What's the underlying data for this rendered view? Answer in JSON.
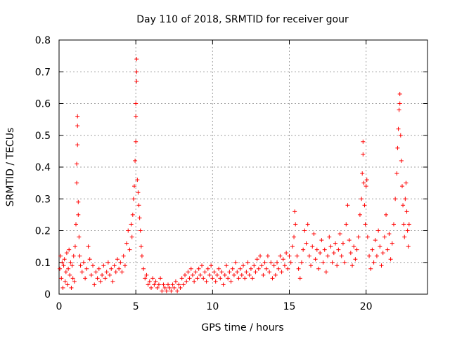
{
  "chart_data": {
    "type": "scatter",
    "title": "Day 110 of 2018, SRMTID for receiver gour",
    "xlabel": "GPS time / hours",
    "ylabel": "SRMTID / TECUs",
    "xlim": [
      0,
      24
    ],
    "ylim": [
      0,
      0.8
    ],
    "xticks": [
      0,
      5,
      10,
      15,
      20
    ],
    "yticks": [
      0,
      0.1,
      0.2,
      0.3,
      0.4,
      0.5,
      0.6,
      0.7,
      0.8
    ],
    "grid": true,
    "marker": "+",
    "color": "#ff0000",
    "series": [
      {
        "name": "SRMTID",
        "points": [
          [
            0.05,
            0.08
          ],
          [
            0.1,
            0.12
          ],
          [
            0.15,
            0.05
          ],
          [
            0.2,
            0.1
          ],
          [
            0.25,
            0.02
          ],
          [
            0.3,
            0.09
          ],
          [
            0.35,
            0.11
          ],
          [
            0.4,
            0.04
          ],
          [
            0.45,
            0.07
          ],
          [
            0.5,
            0.13
          ],
          [
            0.55,
            0.03
          ],
          [
            0.6,
            0.08
          ],
          [
            0.65,
            0.14
          ],
          [
            0.7,
            0.06
          ],
          [
            0.75,
            0.1
          ],
          [
            0.8,
            0.02
          ],
          [
            0.85,
            0.09
          ],
          [
            0.9,
            0.05
          ],
          [
            0.95,
            0.12
          ],
          [
            1.0,
            0.04
          ],
          [
            1.05,
            0.15
          ],
          [
            1.1,
            0.22
          ],
          [
            1.15,
            0.35
          ],
          [
            1.15,
            0.41
          ],
          [
            1.2,
            0.47
          ],
          [
            1.2,
            0.53
          ],
          [
            1.2,
            0.56
          ],
          [
            1.25,
            0.29
          ],
          [
            1.25,
            0.25
          ],
          [
            1.3,
            0.18
          ],
          [
            1.35,
            0.12
          ],
          [
            1.4,
            0.09
          ],
          [
            1.5,
            0.07
          ],
          [
            1.6,
            0.1
          ],
          [
            1.7,
            0.05
          ],
          [
            1.8,
            0.08
          ],
          [
            1.9,
            0.15
          ],
          [
            2.0,
            0.11
          ],
          [
            2.1,
            0.06
          ],
          [
            2.2,
            0.09
          ],
          [
            2.3,
            0.03
          ],
          [
            2.4,
            0.07
          ],
          [
            2.5,
            0.05
          ],
          [
            2.6,
            0.08
          ],
          [
            2.7,
            0.04
          ],
          [
            2.8,
            0.06
          ],
          [
            2.9,
            0.09
          ],
          [
            3.0,
            0.05
          ],
          [
            3.1,
            0.07
          ],
          [
            3.2,
            0.1
          ],
          [
            3.3,
            0.06
          ],
          [
            3.4,
            0.08
          ],
          [
            3.5,
            0.04
          ],
          [
            3.6,
            0.09
          ],
          [
            3.7,
            0.07
          ],
          [
            3.8,
            0.11
          ],
          [
            3.9,
            0.08
          ],
          [
            4.0,
            0.1
          ],
          [
            4.1,
            0.07
          ],
          [
            4.2,
            0.12
          ],
          [
            4.3,
            0.09
          ],
          [
            4.4,
            0.16
          ],
          [
            4.5,
            0.2
          ],
          [
            4.6,
            0.14
          ],
          [
            4.7,
            0.22
          ],
          [
            4.75,
            0.18
          ],
          [
            4.8,
            0.25
          ],
          [
            4.85,
            0.3
          ],
          [
            4.9,
            0.34
          ],
          [
            4.95,
            0.42
          ],
          [
            5.0,
            0.48
          ],
          [
            5.0,
            0.56
          ],
          [
            5.0,
            0.6
          ],
          [
            5.05,
            0.67
          ],
          [
            5.05,
            0.7
          ],
          [
            5.05,
            0.74
          ],
          [
            5.1,
            0.36
          ],
          [
            5.15,
            0.32
          ],
          [
            5.2,
            0.28
          ],
          [
            5.25,
            0.24
          ],
          [
            5.3,
            0.2
          ],
          [
            5.35,
            0.15
          ],
          [
            5.4,
            0.12
          ],
          [
            5.5,
            0.08
          ],
          [
            5.6,
            0.05
          ],
          [
            5.7,
            0.06
          ],
          [
            5.8,
            0.03
          ],
          [
            5.9,
            0.04
          ],
          [
            6.0,
            0.02
          ],
          [
            6.1,
            0.05
          ],
          [
            6.2,
            0.03
          ],
          [
            6.3,
            0.04
          ],
          [
            6.4,
            0.02
          ],
          [
            6.5,
            0.03
          ],
          [
            6.6,
            0.05
          ],
          [
            6.7,
            0.01
          ],
          [
            6.8,
            0.03
          ],
          [
            6.9,
            0.02
          ],
          [
            7.0,
            0.01
          ],
          [
            7.1,
            0.03
          ],
          [
            7.2,
            0.02
          ],
          [
            7.3,
            0.01
          ],
          [
            7.4,
            0.03
          ],
          [
            7.5,
            0.02
          ],
          [
            7.6,
            0.04
          ],
          [
            7.7,
            0.01
          ],
          [
            7.8,
            0.03
          ],
          [
            7.9,
            0.02
          ],
          [
            8.0,
            0.05
          ],
          [
            8.1,
            0.03
          ],
          [
            8.2,
            0.06
          ],
          [
            8.3,
            0.04
          ],
          [
            8.4,
            0.07
          ],
          [
            8.5,
            0.05
          ],
          [
            8.6,
            0.08
          ],
          [
            8.7,
            0.06
          ],
          [
            8.8,
            0.04
          ],
          [
            8.9,
            0.07
          ],
          [
            9.0,
            0.05
          ],
          [
            9.1,
            0.08
          ],
          [
            9.2,
            0.06
          ],
          [
            9.3,
            0.09
          ],
          [
            9.4,
            0.05
          ],
          [
            9.5,
            0.07
          ],
          [
            9.6,
            0.04
          ],
          [
            9.7,
            0.08
          ],
          [
            9.8,
            0.06
          ],
          [
            9.9,
            0.09
          ],
          [
            10.0,
            0.05
          ],
          [
            10.1,
            0.07
          ],
          [
            10.2,
            0.04
          ],
          [
            10.3,
            0.06
          ],
          [
            10.4,
            0.08
          ],
          [
            10.5,
            0.05
          ],
          [
            10.6,
            0.07
          ],
          [
            10.7,
            0.03
          ],
          [
            10.8,
            0.06
          ],
          [
            10.9,
            0.09
          ],
          [
            11.0,
            0.05
          ],
          [
            11.1,
            0.07
          ],
          [
            11.2,
            0.04
          ],
          [
            11.3,
            0.08
          ],
          [
            11.4,
            0.06
          ],
          [
            11.5,
            0.1
          ],
          [
            11.6,
            0.07
          ],
          [
            11.7,
            0.05
          ],
          [
            11.8,
            0.08
          ],
          [
            11.9,
            0.06
          ],
          [
            12.0,
            0.09
          ],
          [
            12.1,
            0.05
          ],
          [
            12.2,
            0.07
          ],
          [
            12.3,
            0.1
          ],
          [
            12.4,
            0.06
          ],
          [
            12.5,
            0.08
          ],
          [
            12.6,
            0.05
          ],
          [
            12.7,
            0.09
          ],
          [
            12.8,
            0.07
          ],
          [
            12.9,
            0.11
          ],
          [
            13.0,
            0.08
          ],
          [
            13.1,
            0.12
          ],
          [
            13.2,
            0.09
          ],
          [
            13.3,
            0.06
          ],
          [
            13.4,
            0.1
          ],
          [
            13.5,
            0.08
          ],
          [
            13.6,
            0.12
          ],
          [
            13.7,
            0.07
          ],
          [
            13.8,
            0.1
          ],
          [
            13.9,
            0.05
          ],
          [
            14.0,
            0.09
          ],
          [
            14.1,
            0.06
          ],
          [
            14.2,
            0.1
          ],
          [
            14.3,
            0.08
          ],
          [
            14.4,
            0.12
          ],
          [
            14.5,
            0.07
          ],
          [
            14.6,
            0.11
          ],
          [
            14.7,
            0.09
          ],
          [
            14.8,
            0.13
          ],
          [
            14.9,
            0.08
          ],
          [
            15.0,
            0.12
          ],
          [
            15.1,
            0.1
          ],
          [
            15.2,
            0.15
          ],
          [
            15.3,
            0.18
          ],
          [
            15.35,
            0.26
          ],
          [
            15.4,
            0.22
          ],
          [
            15.5,
            0.12
          ],
          [
            15.6,
            0.08
          ],
          [
            15.7,
            0.05
          ],
          [
            15.8,
            0.1
          ],
          [
            15.9,
            0.14
          ],
          [
            16.0,
            0.2
          ],
          [
            16.1,
            0.16
          ],
          [
            16.2,
            0.22
          ],
          [
            16.3,
            0.12
          ],
          [
            16.4,
            0.09
          ],
          [
            16.5,
            0.15
          ],
          [
            16.6,
            0.19
          ],
          [
            16.7,
            0.11
          ],
          [
            16.8,
            0.14
          ],
          [
            16.9,
            0.08
          ],
          [
            17.0,
            0.13
          ],
          [
            17.1,
            0.17
          ],
          [
            17.2,
            0.1
          ],
          [
            17.3,
            0.14
          ],
          [
            17.4,
            0.07
          ],
          [
            17.5,
            0.12
          ],
          [
            17.6,
            0.18
          ],
          [
            17.7,
            0.15
          ],
          [
            17.8,
            0.1
          ],
          [
            17.9,
            0.13
          ],
          [
            18.0,
            0.16
          ],
          [
            18.1,
            0.09
          ],
          [
            18.2,
            0.14
          ],
          [
            18.3,
            0.19
          ],
          [
            18.4,
            0.12
          ],
          [
            18.5,
            0.16
          ],
          [
            18.6,
            0.1
          ],
          [
            18.7,
            0.22
          ],
          [
            18.8,
            0.28
          ],
          [
            18.9,
            0.17
          ],
          [
            19.0,
            0.13
          ],
          [
            19.1,
            0.09
          ],
          [
            19.2,
            0.15
          ],
          [
            19.3,
            0.11
          ],
          [
            19.4,
            0.14
          ],
          [
            19.5,
            0.18
          ],
          [
            19.6,
            0.25
          ],
          [
            19.7,
            0.3
          ],
          [
            19.75,
            0.38
          ],
          [
            19.8,
            0.44
          ],
          [
            19.8,
            0.48
          ],
          [
            19.85,
            0.35
          ],
          [
            19.9,
            0.28
          ],
          [
            19.95,
            0.22
          ],
          [
            20.0,
            0.34
          ],
          [
            20.05,
            0.36
          ],
          [
            20.1,
            0.18
          ],
          [
            20.2,
            0.12
          ],
          [
            20.3,
            0.08
          ],
          [
            20.4,
            0.14
          ],
          [
            20.5,
            0.1
          ],
          [
            20.6,
            0.17
          ],
          [
            20.7,
            0.12
          ],
          [
            20.8,
            0.2
          ],
          [
            20.9,
            0.15
          ],
          [
            21.0,
            0.09
          ],
          [
            21.1,
            0.13
          ],
          [
            21.2,
            0.18
          ],
          [
            21.3,
            0.25
          ],
          [
            21.4,
            0.14
          ],
          [
            21.5,
            0.19
          ],
          [
            21.6,
            0.11
          ],
          [
            21.7,
            0.16
          ],
          [
            21.8,
            0.22
          ],
          [
            21.9,
            0.3
          ],
          [
            22.0,
            0.38
          ],
          [
            22.05,
            0.46
          ],
          [
            22.1,
            0.52
          ],
          [
            22.15,
            0.58
          ],
          [
            22.2,
            0.63
          ],
          [
            22.2,
            0.6
          ],
          [
            22.25,
            0.5
          ],
          [
            22.3,
            0.42
          ],
          [
            22.35,
            0.34
          ],
          [
            22.4,
            0.28
          ],
          [
            22.45,
            0.22
          ],
          [
            22.5,
            0.18
          ],
          [
            22.55,
            0.3
          ],
          [
            22.6,
            0.35
          ],
          [
            22.65,
            0.26
          ],
          [
            22.7,
            0.2
          ],
          [
            22.75,
            0.15
          ],
          [
            22.8,
            0.22
          ]
        ]
      }
    ]
  }
}
